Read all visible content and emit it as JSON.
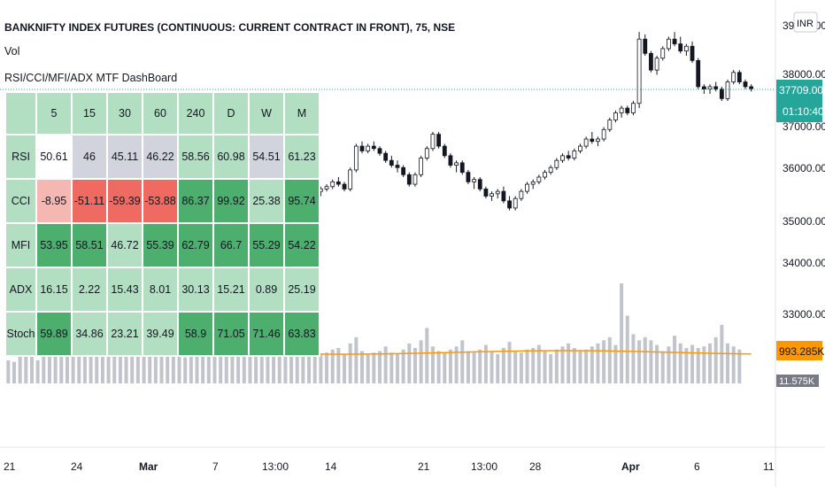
{
  "header": {
    "title": "BANKNIFTY INDEX FUTURES (CONTINUOUS: CURRENT CONTRACT IN FRONT), 75, NSE",
    "volume_label": "Vol",
    "dashboard_title": "RSI/CCI/MFI/ADX MTF DashBoard"
  },
  "currency_button": "INR",
  "price_axis": {
    "ticks": [
      "39000.00",
      "38000.00",
      "37000.00",
      "36000.00",
      "35000.00",
      "34000.00",
      "33000.00"
    ],
    "last_price": "37709.00",
    "countdown": "01:10:40",
    "volume_ma": "993.285K",
    "volume": "11.575K",
    "colors": {
      "price_badge": "#26a69a",
      "volume_ma_badge": "#ff9800",
      "volume_badge": "#787b86"
    }
  },
  "time_axis": {
    "labels": [
      "21",
      "24",
      "Mar",
      "7",
      "13:00",
      "14",
      "21",
      "13:00",
      "28",
      "Apr",
      "6",
      "11"
    ]
  },
  "dashboard": {
    "columns": [
      "5",
      "15",
      "30",
      "60",
      "240",
      "D",
      "W",
      "M"
    ],
    "rows": [
      {
        "label": "RSI",
        "values": [
          "50.61",
          "46",
          "45.11",
          "46.22",
          "58.56",
          "60.98",
          "54.51",
          "61.23"
        ],
        "colors": [
          "#ffffff",
          "#d1d4dc",
          "#d1d4dc",
          "#d1d4dc",
          "#b2dfc1",
          "#b2dfc1",
          "#d1d4dc",
          "#b2dfc1"
        ]
      },
      {
        "label": "CCI",
        "values": [
          "-8.95",
          "-51.11",
          "-59.39",
          "-53.88",
          "86.37",
          "99.92",
          "25.38",
          "95.74"
        ],
        "colors": [
          "#f5b7b1",
          "#ef6b61",
          "#ef6b61",
          "#ef6b61",
          "#4caf6e",
          "#4caf6e",
          "#b2dfc1",
          "#4caf6e"
        ]
      },
      {
        "label": "MFI",
        "values": [
          "53.95",
          "58.51",
          "46.72",
          "55.39",
          "62.79",
          "66.7",
          "55.29",
          "54.22"
        ],
        "colors": [
          "#4caf6e",
          "#4caf6e",
          "#b2dfc1",
          "#4caf6e",
          "#4caf6e",
          "#4caf6e",
          "#4caf6e",
          "#4caf6e"
        ]
      },
      {
        "label": "ADX",
        "values": [
          "16.15",
          "2.22",
          "15.43",
          "8.01",
          "30.13",
          "15.21",
          "0.89",
          "25.19"
        ],
        "colors": [
          "#b2dfc1",
          "#b2dfc1",
          "#b2dfc1",
          "#b2dfc1",
          "#b2dfc1",
          "#b2dfc1",
          "#b2dfc1",
          "#b2dfc1"
        ]
      },
      {
        "label": "Stoch",
        "values": [
          "59.89",
          "34.86",
          "23.21",
          "39.49",
          "58.9",
          "71.05",
          "71.46",
          "63.83"
        ],
        "colors": [
          "#4caf6e",
          "#b2dfc1",
          "#b2dfc1",
          "#b2dfc1",
          "#4caf6e",
          "#4caf6e",
          "#4caf6e",
          "#4caf6e"
        ]
      }
    ]
  },
  "chart_data": {
    "type": "candlestick",
    "ylim": [
      32500,
      39200
    ],
    "candles": [
      [
        36100,
        36150,
        35950,
        36000
      ],
      [
        36000,
        36200,
        35900,
        36150
      ],
      [
        36150,
        36250,
        36050,
        36100
      ],
      [
        36100,
        36150,
        35850,
        35900
      ],
      [
        35900,
        36050,
        35800,
        36000
      ],
      [
        36000,
        36100,
        35950,
        36050
      ],
      [
        36050,
        36250,
        35980,
        36200
      ],
      [
        36200,
        36300,
        36100,
        36150
      ],
      [
        36150,
        36200,
        35900,
        35950
      ],
      [
        35950,
        36050,
        35850,
        35980
      ],
      [
        35980,
        36100,
        35900,
        36050
      ],
      [
        36050,
        36400,
        36000,
        36350
      ],
      [
        36350,
        36500,
        36300,
        36450
      ],
      [
        36450,
        36480,
        36250,
        36300
      ],
      [
        36300,
        36350,
        36100,
        36150
      ],
      [
        36150,
        36200,
        35950,
        36000
      ],
      [
        36000,
        36080,
        35700,
        35750
      ],
      [
        35750,
        35900,
        35600,
        35850
      ],
      [
        35850,
        35950,
        35750,
        35900
      ],
      [
        35900,
        35950,
        35700,
        35750
      ],
      [
        35750,
        35800,
        35450,
        35500
      ],
      [
        35500,
        35650,
        35300,
        35350
      ],
      [
        35350,
        35500,
        35200,
        35450
      ],
      [
        35450,
        35550,
        35350,
        35400
      ],
      [
        35400,
        35450,
        35100,
        35150
      ],
      [
        35150,
        35300,
        35000,
        35250
      ],
      [
        35250,
        35400,
        35150,
        35200
      ],
      [
        35200,
        35250,
        34900,
        34950
      ],
      [
        34950,
        35150,
        34850,
        35100
      ],
      [
        35100,
        35250,
        35000,
        35200
      ],
      [
        35200,
        35350,
        35150,
        35300
      ],
      [
        35300,
        35500,
        35250,
        35450
      ],
      [
        35450,
        35600,
        35350,
        35550
      ],
      [
        35550,
        35650,
        35450,
        35500
      ],
      [
        35500,
        35600,
        35350,
        35400
      ],
      [
        35400,
        35450,
        35200,
        35250
      ],
      [
        35250,
        35450,
        35200,
        35400
      ],
      [
        35400,
        35650,
        35350,
        35600
      ],
      [
        35600,
        35800,
        35550,
        35750
      ],
      [
        35750,
        35900,
        35700,
        35850
      ],
      [
        35850,
        35950,
        35700,
        35750
      ],
      [
        35750,
        35850,
        35550,
        35600
      ],
      [
        35600,
        35650,
        35450,
        35500
      ],
      [
        35500,
        35550,
        35300,
        35350
      ],
      [
        35350,
        35400,
        35100,
        35150
      ],
      [
        35150,
        35250,
        34950,
        35200
      ],
      [
        35200,
        35500,
        35150,
        35450
      ],
      [
        35450,
        35600,
        35400,
        35550
      ],
      [
        35550,
        35650,
        35450,
        35500
      ],
      [
        35500,
        35800,
        35450,
        35750
      ],
      [
        35750,
        35900,
        35700,
        35850
      ],
      [
        35850,
        35950,
        35650,
        35700
      ],
      [
        35700,
        35750,
        35500,
        35550
      ],
      [
        35550,
        35650,
        35450,
        35600
      ],
      [
        35600,
        35700,
        35550,
        35650
      ],
      [
        35650,
        35800,
        35600,
        35750
      ],
      [
        35750,
        35850,
        35650,
        35700
      ],
      [
        35700,
        35750,
        35550,
        35600
      ],
      [
        35600,
        36050,
        35550,
        36000
      ],
      [
        36000,
        36550,
        35950,
        36500
      ],
      [
        36500,
        36600,
        36350,
        36400
      ],
      [
        36400,
        36550,
        36350,
        36500
      ],
      [
        36500,
        36600,
        36400,
        36450
      ],
      [
        36450,
        36500,
        36300,
        36350
      ],
      [
        36350,
        36400,
        36150,
        36200
      ],
      [
        36200,
        36300,
        36050,
        36100
      ],
      [
        36100,
        36200,
        35950,
        36050
      ],
      [
        36050,
        36100,
        35850,
        35900
      ],
      [
        35900,
        35950,
        35650,
        35700
      ],
      [
        35700,
        35950,
        35650,
        35900
      ],
      [
        35900,
        36300,
        35850,
        36250
      ],
      [
        36250,
        36500,
        36200,
        36450
      ],
      [
        36450,
        36800,
        36400,
        36750
      ],
      [
        36750,
        36800,
        36450,
        36500
      ],
      [
        36500,
        36550,
        36250,
        36300
      ],
      [
        36300,
        36350,
        36050,
        36100
      ],
      [
        36100,
        36200,
        35950,
        36150
      ],
      [
        36150,
        36200,
        35900,
        35950
      ],
      [
        35950,
        36000,
        35700,
        35750
      ],
      [
        35750,
        35850,
        35600,
        35800
      ],
      [
        35800,
        35850,
        35550,
        35600
      ],
      [
        35600,
        35650,
        35400,
        35450
      ],
      [
        35450,
        35550,
        35350,
        35500
      ],
      [
        35500,
        35600,
        35400,
        35550
      ],
      [
        35550,
        35650,
        35300,
        35350
      ],
      [
        35350,
        35450,
        35150,
        35200
      ],
      [
        35200,
        35450,
        35150,
        35400
      ],
      [
        35400,
        35600,
        35350,
        35550
      ],
      [
        35550,
        35750,
        35500,
        35700
      ],
      [
        35700,
        35800,
        35600,
        35750
      ],
      [
        35750,
        35900,
        35700,
        35850
      ],
      [
        35850,
        36000,
        35800,
        35950
      ],
      [
        35950,
        36100,
        35900,
        36050
      ],
      [
        36050,
        36250,
        36000,
        36200
      ],
      [
        36200,
        36350,
        36150,
        36300
      ],
      [
        36300,
        36400,
        36200,
        36250
      ],
      [
        36250,
        36450,
        36200,
        36400
      ],
      [
        36400,
        36550,
        36350,
        36500
      ],
      [
        36500,
        36700,
        36450,
        36650
      ],
      [
        36650,
        36800,
        36550,
        36600
      ],
      [
        36600,
        36700,
        36500,
        36650
      ],
      [
        36650,
        36900,
        36600,
        36850
      ],
      [
        36850,
        37100,
        36800,
        37050
      ],
      [
        37050,
        37250,
        37000,
        37200
      ],
      [
        37200,
        37350,
        37100,
        37300
      ],
      [
        37300,
        37350,
        37150,
        37200
      ],
      [
        37200,
        37450,
        37150,
        37400
      ],
      [
        37400,
        38900,
        37300,
        38750
      ],
      [
        38750,
        38850,
        38400,
        38450
      ],
      [
        38450,
        38500,
        38050,
        38100
      ],
      [
        38100,
        38400,
        38000,
        38350
      ],
      [
        38350,
        38600,
        38300,
        38550
      ],
      [
        38550,
        38800,
        38500,
        38750
      ],
      [
        38750,
        38900,
        38600,
        38650
      ],
      [
        38650,
        38800,
        38450,
        38500
      ],
      [
        38500,
        38650,
        38400,
        38600
      ],
      [
        38600,
        38700,
        38250,
        38300
      ],
      [
        38300,
        38350,
        37700,
        37750
      ],
      [
        37750,
        37800,
        37600,
        37700
      ],
      [
        37700,
        37800,
        37600,
        37750
      ],
      [
        37750,
        37850,
        37650,
        37700
      ],
      [
        37700,
        37750,
        37450,
        37500
      ],
      [
        37500,
        37900,
        37450,
        37850
      ],
      [
        37850,
        38100,
        37800,
        38050
      ],
      [
        38050,
        38100,
        37800,
        37850
      ],
      [
        37850,
        37900,
        37700,
        37750
      ],
      [
        37750,
        37800,
        37650,
        37709
      ]
    ],
    "volume": [
      300,
      280,
      520,
      450,
      380,
      300,
      600,
      420,
      350,
      380,
      460,
      700,
      520,
      400,
      350,
      380,
      900,
      460,
      380,
      360,
      420,
      520,
      380,
      350,
      480,
      400,
      380,
      620,
      480,
      360,
      340,
      400,
      420,
      360,
      400,
      380,
      420,
      500,
      620,
      460,
      400,
      420,
      380,
      520,
      480,
      560,
      440,
      420,
      380,
      460,
      560,
      480,
      420,
      380,
      400,
      440,
      460,
      380,
      520,
      600,
      420,
      380,
      400,
      420,
      480,
      400,
      380,
      440,
      520,
      460,
      560,
      720,
      480,
      420,
      400,
      440,
      480,
      560,
      420,
      400,
      440,
      500,
      420,
      380,
      460,
      540,
      420,
      400,
      440,
      460,
      500,
      420,
      380,
      440,
      480,
      520,
      460,
      420,
      440,
      480,
      520,
      560,
      600,
      500,
      1300,
      880,
      640,
      560,
      600,
      560,
      500,
      420,
      480,
      620,
      520,
      460,
      500,
      460,
      480,
      520,
      600,
      760,
      520,
      480,
      440
    ],
    "volume_ma": 993.285
  }
}
